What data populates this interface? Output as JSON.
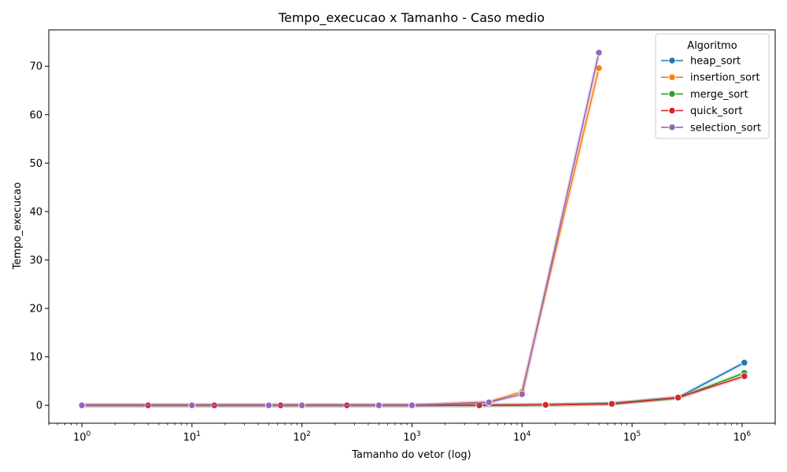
{
  "chart_data": {
    "type": "line",
    "title": "Tempo_execucao x Tamanho - Caso medio",
    "xlabel": "Tamanho do vetor (log)",
    "ylabel": "Tempo_execucao",
    "xscale": "log",
    "xlim": [
      0.5,
      2000000
    ],
    "ylim": [
      -3.7,
      77.5
    ],
    "x_ticks": [
      {
        "value": 1,
        "base": "10",
        "exp": "0"
      },
      {
        "value": 10,
        "base": "10",
        "exp": "1"
      },
      {
        "value": 100,
        "base": "10",
        "exp": "2"
      },
      {
        "value": 1000,
        "base": "10",
        "exp": "3"
      },
      {
        "value": 10000,
        "base": "10",
        "exp": "4"
      },
      {
        "value": 100000,
        "base": "10",
        "exp": "5"
      },
      {
        "value": 1000000,
        "base": "10",
        "exp": "6"
      }
    ],
    "y_ticks": [
      0,
      10,
      20,
      30,
      40,
      50,
      60,
      70
    ],
    "grid": false,
    "legend": {
      "title": "Algoritmo",
      "position": "top-right"
    },
    "series": [
      {
        "name": "heap_sort",
        "color": "#1f77b4",
        "x": [
          1,
          4,
          16,
          64,
          256,
          4096,
          16384,
          65536,
          262144,
          1048576
        ],
        "y": [
          0,
          0,
          0,
          0,
          0,
          0,
          0.1,
          0.4,
          1.6,
          8.8
        ]
      },
      {
        "name": "insertion_sort",
        "color": "#ff7f0e",
        "x": [
          1,
          10,
          50,
          100,
          500,
          1000,
          5000,
          10000,
          50000
        ],
        "y": [
          0,
          0,
          0,
          0,
          0,
          0,
          0.7,
          2.8,
          69.6
        ]
      },
      {
        "name": "merge_sort",
        "color": "#2ca02c",
        "x": [
          1,
          4,
          16,
          64,
          256,
          4096,
          16384,
          65536,
          262144,
          1048576
        ],
        "y": [
          0,
          0,
          0,
          0,
          0,
          0,
          0.1,
          0.3,
          1.5,
          6.7
        ]
      },
      {
        "name": "quick_sort",
        "color": "#d62728",
        "x": [
          1,
          4,
          16,
          64,
          256,
          4096,
          16384,
          65536,
          262144,
          1048576
        ],
        "y": [
          0,
          0,
          0,
          0,
          0,
          0,
          0.1,
          0.3,
          1.6,
          6.0
        ]
      },
      {
        "name": "selection_sort",
        "color": "#9467bd",
        "x": [
          1,
          10,
          50,
          100,
          500,
          1000,
          5000,
          10000,
          50000
        ],
        "y": [
          0,
          0,
          0,
          0,
          0,
          0,
          0.6,
          2.3,
          72.8
        ]
      }
    ]
  }
}
